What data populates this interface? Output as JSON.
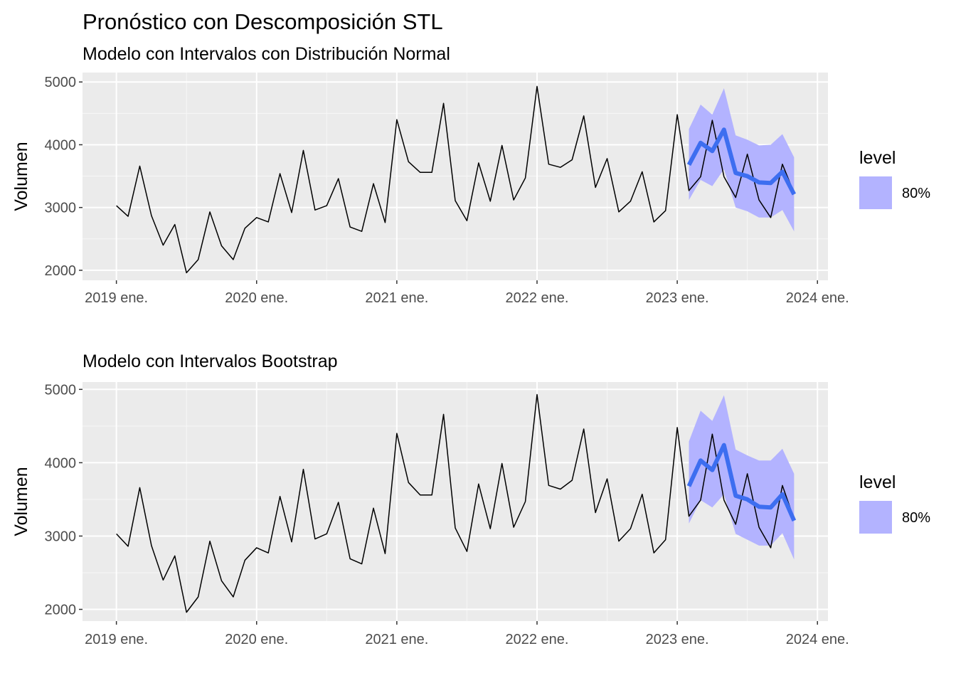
{
  "title": "Pronóstico con Descomposición STL",
  "chart_data": [
    {
      "type": "line",
      "subtitle": "Modelo con Intervalos con Distribución Normal",
      "ylabel": "Volumen",
      "xlabel": "",
      "x_ticks": [
        "2019 ene.",
        "2020 ene.",
        "2021 ene.",
        "2022 ene.",
        "2023 ene.",
        "2024 ene."
      ],
      "y_ticks": [
        2000,
        3000,
        4000,
        5000
      ],
      "ylim": [
        1840,
        5150
      ],
      "xlim": [
        "2018 sep.",
        "2024 feb."
      ],
      "grid": true,
      "legend": {
        "title": "level",
        "position": "right",
        "items": [
          {
            "label": "80%",
            "color": "#b3b3ff"
          }
        ]
      },
      "series": [
        {
          "name": "history",
          "color": "#000000",
          "start": "2019-01",
          "values": [
            3030,
            2860,
            3660,
            2870,
            2400,
            2730,
            1960,
            2170,
            2930,
            2390,
            2170,
            2670,
            2840,
            2770,
            3540,
            2920,
            3910,
            2960,
            3030,
            3460,
            2690,
            2620,
            3380,
            2760,
            4400,
            3730,
            3560,
            3560,
            4660,
            3110,
            2790,
            3710,
            3100,
            3990,
            3120,
            3470,
            4930,
            3690,
            3640,
            3760,
            4460,
            3320,
            3780,
            2930,
            3100,
            3570,
            2770,
            2950,
            4480,
            3270,
            3490,
            4390,
            3490,
            3160,
            3850,
            3120,
            2840,
            3690,
            3230
          ]
        },
        {
          "name": "forecast",
          "color": "#3d6ef0",
          "start": "2023-02",
          "values": [
            3680,
            4030,
            3900,
            4240,
            3550,
            3500,
            3400,
            3390,
            3570,
            3210
          ],
          "interval_80": {
            "lower": [
              3120,
              3440,
              3340,
              3610,
              3000,
              2940,
              2840,
              2840,
              2960,
              2620
            ],
            "upper": [
              4250,
              4640,
              4480,
              4900,
              4150,
              4080,
              3990,
              4000,
              4170,
              3800
            ]
          }
        }
      ]
    },
    {
      "type": "line",
      "subtitle": "Modelo con Intervalos Bootstrap",
      "ylabel": "Volumen",
      "xlabel": "",
      "x_ticks": [
        "2019 ene.",
        "2020 ene.",
        "2021 ene.",
        "2022 ene.",
        "2023 ene.",
        "2024 ene."
      ],
      "y_ticks": [
        2000,
        3000,
        4000,
        5000
      ],
      "ylim": [
        1840,
        5100
      ],
      "xlim": [
        "2018 sep.",
        "2024 feb."
      ],
      "grid": true,
      "legend": {
        "title": "level",
        "position": "right",
        "items": [
          {
            "label": "80%",
            "color": "#b3b3ff"
          }
        ]
      },
      "series": [
        {
          "name": "history",
          "color": "#000000",
          "start": "2019-01",
          "values": [
            3030,
            2860,
            3660,
            2870,
            2400,
            2730,
            1960,
            2170,
            2930,
            2390,
            2170,
            2670,
            2840,
            2770,
            3540,
            2920,
            3910,
            2960,
            3030,
            3460,
            2690,
            2620,
            3380,
            2760,
            4400,
            3730,
            3560,
            3560,
            4660,
            3110,
            2790,
            3710,
            3100,
            3990,
            3120,
            3470,
            4930,
            3690,
            3640,
            3760,
            4460,
            3320,
            3780,
            2930,
            3100,
            3570,
            2770,
            2950,
            4480,
            3270,
            3490,
            4390,
            3490,
            3160,
            3850,
            3120,
            2840,
            3690,
            3230
          ]
        },
        {
          "name": "forecast",
          "color": "#3d6ef0",
          "start": "2023-02",
          "values": [
            3680,
            4030,
            3900,
            4240,
            3550,
            3500,
            3400,
            3390,
            3570,
            3210
          ],
          "interval_80": {
            "lower": [
              3170,
              3490,
              3390,
              3570,
              3030,
              2950,
              2870,
              2870,
              3040,
              2680
            ],
            "upper": [
              4290,
              4710,
              4570,
              4920,
              4180,
              4100,
              4030,
              4030,
              4190,
              3850
            ]
          }
        }
      ]
    }
  ]
}
